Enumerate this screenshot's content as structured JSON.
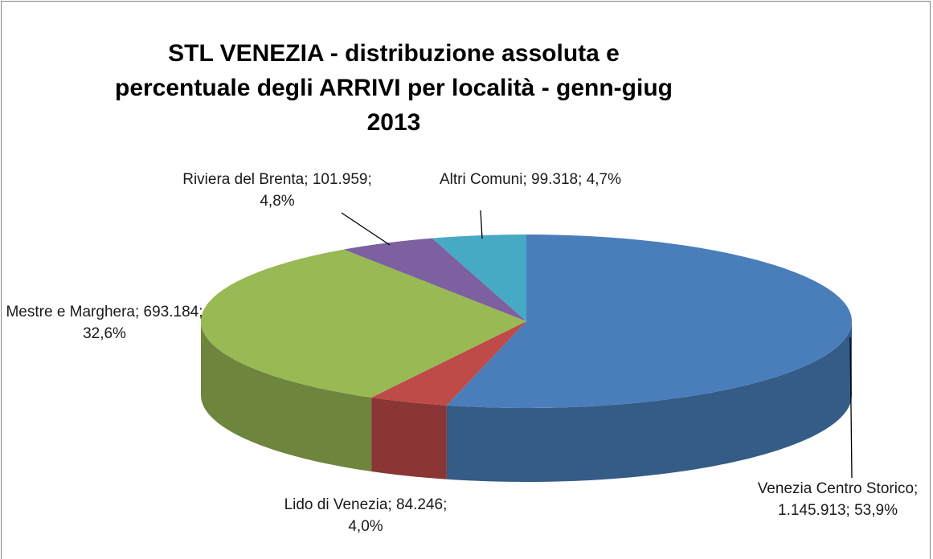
{
  "chart_data": {
    "type": "pie3d",
    "title": "STL VENEZIA - distribuzione assoluta e percentuale degli ARRIVI per località - genn-giug 2013",
    "categories": [
      "Venezia Centro Storico",
      "Lido di Venezia",
      "Mestre e Marghera",
      "Riviera del Brenta",
      "Altri Comuni"
    ],
    "values": [
      1145913,
      84246,
      693184,
      101959,
      99318
    ],
    "value_labels": [
      "1.145.913",
      "84.246",
      "693.184",
      "101.959",
      "99.318"
    ],
    "percent": [
      53.9,
      4.0,
      32.6,
      4.8,
      4.7
    ],
    "percent_labels": [
      "53,9%",
      "4,0%",
      "32,6%",
      "4,8%",
      "4,7%"
    ],
    "colors": [
      "#4a7ebb",
      "#be4b48",
      "#98b954",
      "#7d60a0",
      "#46aac5"
    ]
  }
}
